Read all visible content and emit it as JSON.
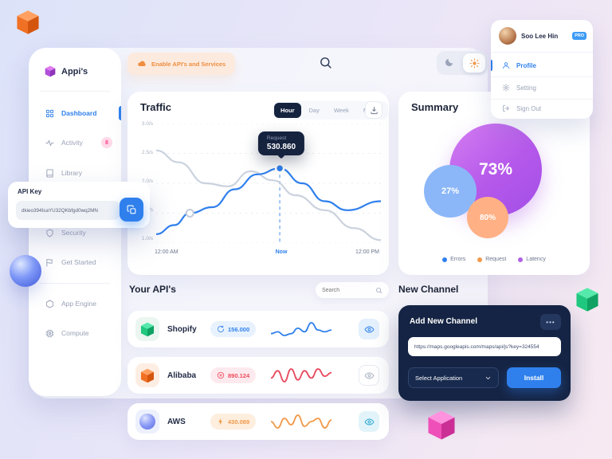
{
  "app": {
    "accent_blue": "#2F80ED",
    "accent_orange": "#F2994A",
    "dark_navy": "#152444"
  },
  "profile_menu": {
    "name": "Soo Lee Hin",
    "badge": "PRO",
    "items": [
      {
        "label": "Profile",
        "active": true
      },
      {
        "label": "Setting"
      },
      {
        "label": "Sign Out"
      }
    ]
  },
  "sidebar": {
    "brand": "Appi's",
    "items": [
      {
        "label": "Dashboard",
        "active": true
      },
      {
        "label": "Activity",
        "badge": "8"
      },
      {
        "label": "Library"
      },
      {
        "label": "Security"
      },
      {
        "label": "Get Started"
      },
      {
        "label": "App Engine"
      },
      {
        "label": "Compute"
      }
    ]
  },
  "topbar": {
    "enable_button": "Enable API's and Services"
  },
  "api_key_popup": {
    "title": "API Key",
    "value": "dkieo394IsaYU32QKbfgd0wq2MN"
  },
  "traffic": {
    "title": "Traffic",
    "tabs": [
      "Hour",
      "Day",
      "Week",
      "Month"
    ],
    "active_tab": "Hour",
    "y_labels": [
      "3.0/s",
      "2.5/s",
      "2.0/s",
      "1.5/s",
      "1.0/s"
    ],
    "x_labels": [
      "12:00 AM",
      "Now",
      "12:00 PM"
    ],
    "tooltip": {
      "label": "Request",
      "value": "530.860"
    },
    "chart": {
      "type": "line",
      "y_min": 1.0,
      "y_max": 3.0,
      "series": [
        {
          "name": "previous",
          "color": "#CBD2DE",
          "points": [
            [
              0,
              2.55
            ],
            [
              10,
              2.35
            ],
            [
              22,
              2.0
            ],
            [
              32,
              1.95
            ],
            [
              42,
              2.2
            ],
            [
              52,
              2.05
            ],
            [
              62,
              1.8
            ],
            [
              75,
              1.55
            ],
            [
              88,
              1.25
            ],
            [
              100,
              1.05
            ]
          ]
        },
        {
          "name": "requests",
          "color": "#2F80ED",
          "points": [
            [
              0,
              1.15
            ],
            [
              8,
              1.3
            ],
            [
              15,
              1.5
            ],
            [
              25,
              1.6
            ],
            [
              35,
              1.9
            ],
            [
              45,
              2.15
            ],
            [
              55,
              2.25
            ],
            [
              65,
              2.0
            ],
            [
              75,
              1.7
            ],
            [
              85,
              1.55
            ],
            [
              100,
              1.7
            ]
          ]
        }
      ],
      "now": {
        "x": 55,
        "v": 2.25
      },
      "marker": {
        "x": 15,
        "v": 1.5
      }
    }
  },
  "summary": {
    "title": "Summary",
    "bubbles": [
      {
        "label": "73%",
        "color_from": "#D47DF2",
        "color_to": "#A24FE8"
      },
      {
        "label": "27%",
        "color": "#8BB7F8"
      },
      {
        "label": "80%",
        "color": "#FFB084"
      }
    ],
    "legend": [
      {
        "label": "Errors",
        "color": "#2F80ED"
      },
      {
        "label": "Request",
        "color": "#F2994A"
      },
      {
        "label": "Latency",
        "color": "#B061E5"
      }
    ]
  },
  "your_apis": {
    "title": "Your API's",
    "search_placeholder": "Search",
    "items": [
      {
        "name": "Shopify",
        "value": "156.000",
        "color": "#2F80ED",
        "pill_bg": "#E8F2FE",
        "spark": {
          "color": "#2F80ED",
          "values": [
            4,
            4.5,
            3.5,
            4,
            5.5,
            4.5,
            7,
            5,
            4.5,
            5
          ]
        }
      },
      {
        "name": "Alibaba",
        "value": "890.124",
        "color": "#EE4B5E",
        "pill_bg": "#FDEAEE",
        "spark": {
          "color": "#E8485C",
          "values": [
            4,
            6,
            3,
            6.5,
            3.5,
            6,
            4,
            6.5,
            4.5,
            5.5
          ]
        }
      },
      {
        "name": "AWS",
        "value": "430.089",
        "color": "#F2994A",
        "pill_bg": "#FDEEDE",
        "spark": {
          "color": "#F2994A",
          "values": [
            5,
            3,
            6,
            4,
            7,
            3.5,
            5,
            6,
            3,
            5.5
          ]
        }
      }
    ]
  },
  "new_channel": {
    "title": "New Channel",
    "card_title": "Add New Channel",
    "menu_button": "•••",
    "url": "https://maps.googleapis.com/maps/api/js?key=324554",
    "select_label": "Select Application",
    "install_label": "Install"
  }
}
